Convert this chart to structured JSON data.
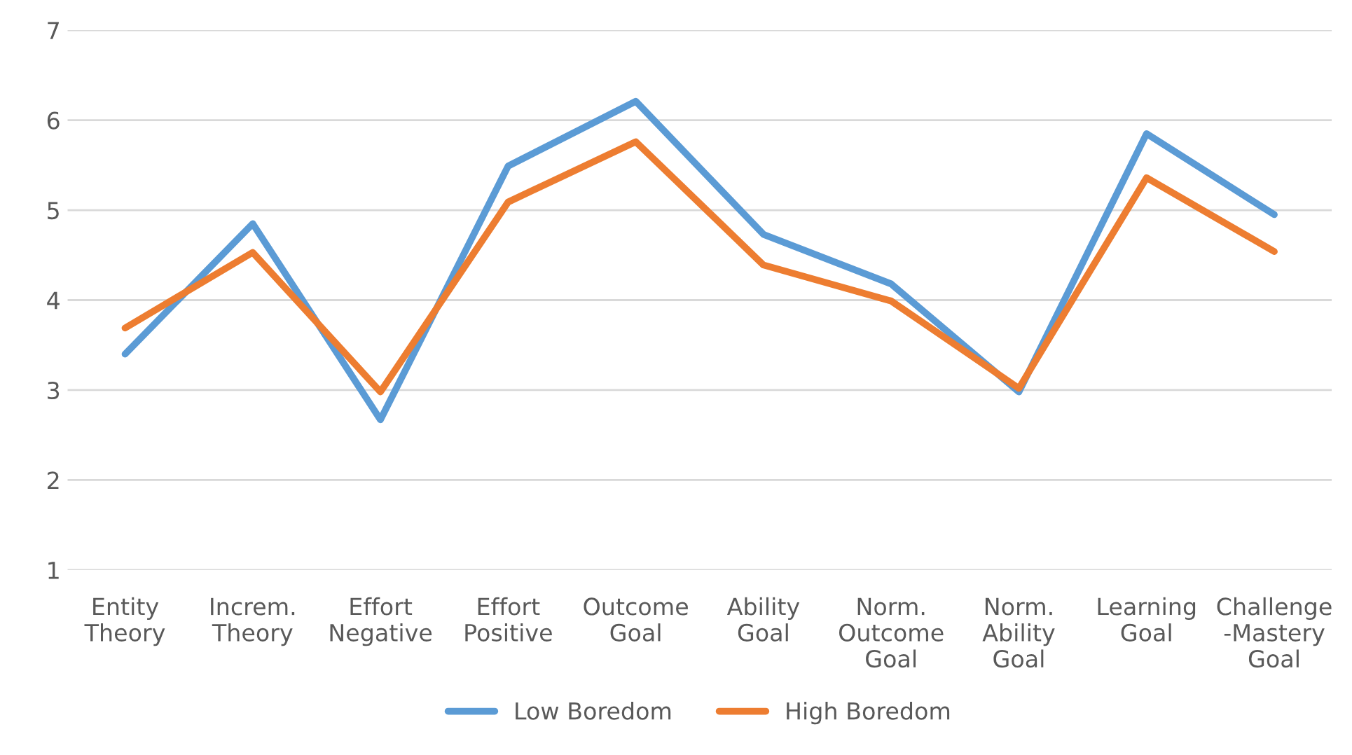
{
  "chart_data": {
    "type": "line",
    "categories": [
      "Entity\nTheory",
      "Increm.\nTheory",
      "Effort\nNegative",
      "Effort\nPositive",
      "Outcome\nGoal",
      "Ability\nGoal",
      "Norm.\nOutcome\nGoal",
      "Norm.\nAbility\nGoal",
      "Learning\nGoal",
      "Challenge\n-Mastery\nGoal"
    ],
    "series": [
      {
        "name": "Low Boredom",
        "color": "#5b9bd5",
        "values": [
          3.4,
          4.85,
          2.67,
          5.49,
          6.21,
          4.73,
          4.18,
          2.98,
          5.85,
          4.95
        ]
      },
      {
        "name": "High Boredom",
        "color": "#ed7d31",
        "values": [
          3.69,
          4.53,
          2.98,
          5.09,
          5.76,
          4.39,
          3.99,
          3.02,
          5.36,
          4.54
        ]
      }
    ],
    "ylim": [
      1,
      7
    ],
    "yticks": [
      1,
      2,
      3,
      4,
      5,
      6,
      7
    ],
    "grid": "y",
    "legend": "bottom",
    "marker": "none",
    "line_style": "solid"
  }
}
